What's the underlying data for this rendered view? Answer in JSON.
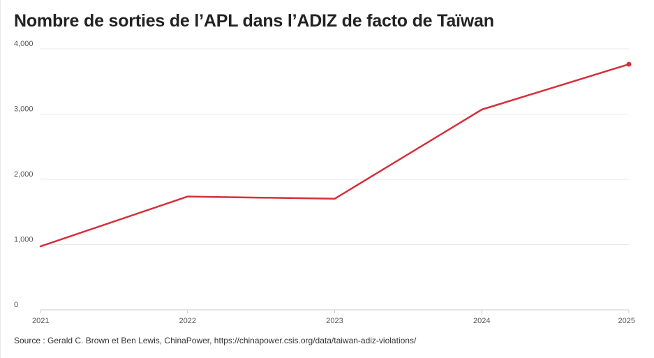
{
  "colors": {
    "line": "#d62f3c",
    "grid": "#e8e8e8",
    "axis": "#cccccc"
  },
  "title": "Nombre de sorties de l’APL dans l’ADIZ de facto de Taïwan",
  "source": "Source : Gerald C. Brown et Ben Lewis, ChinaPower, https://chinapower.csis.org/data/taiwan-adiz-violations/",
  "chart_data": {
    "type": "line",
    "title": "Nombre de sorties de l’APL dans l’ADIZ de facto de Taïwan",
    "xlabel": "",
    "ylabel": "",
    "x": [
      2021,
      2022,
      2023,
      2024,
      2025
    ],
    "x_tick_labels": [
      "2021",
      "2022",
      "2023",
      "2024",
      "2025"
    ],
    "y_ticks": [
      0,
      1000,
      2000,
      3000,
      4000
    ],
    "y_tick_labels": [
      "0",
      "1,000",
      "2,000",
      "3,000",
      "4,000"
    ],
    "ylim": [
      0,
      4000
    ],
    "xlim": [
      2021,
      2025
    ],
    "grid": true,
    "legend": "none",
    "series": [
      {
        "values": [
          972,
          1737,
          1703,
          3070,
          3764
        ],
        "color": "#d62f3c",
        "end_marker": true
      }
    ]
  }
}
